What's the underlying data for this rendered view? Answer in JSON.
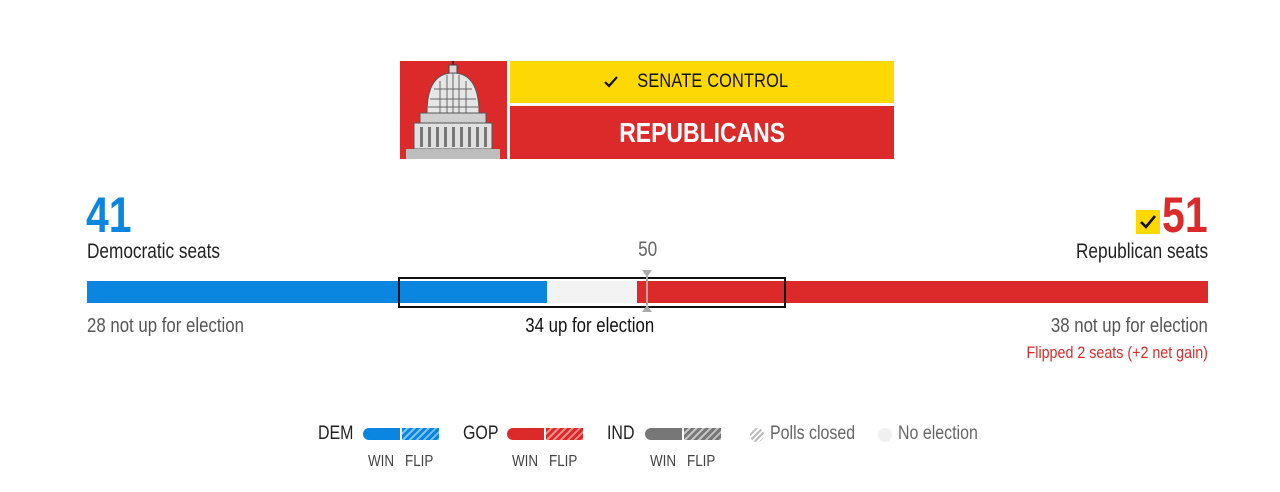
{
  "header": {
    "control_label": "SENATE CONTROL",
    "winner": "REPUBLICANS",
    "colors": {
      "accent_yellow": "#fdd803",
      "gop_red": "#dc2a2a"
    }
  },
  "dem": {
    "count": "41",
    "label": "Democratic seats",
    "not_up": "28 not up for election",
    "color": "#0b86e0"
  },
  "gop": {
    "count": "51",
    "label": "Republican seats",
    "not_up": "38 not up for election",
    "flipped": "Flipped 2 seats (+2 net gain)",
    "color": "#dc2a2a"
  },
  "majority": "50",
  "up_for_election": "34 up for election",
  "bar_segments": {
    "total": 100,
    "dem_not_up": 28,
    "dem_won": 13,
    "uncalled": 8,
    "gop_won": 13,
    "gop_not_up": 38
  },
  "legend": {
    "dem": "DEM",
    "gop": "GOP",
    "ind": "IND",
    "win": "WIN",
    "flip": "FLIP",
    "polls_closed": "Polls closed",
    "no_election": "No election"
  }
}
